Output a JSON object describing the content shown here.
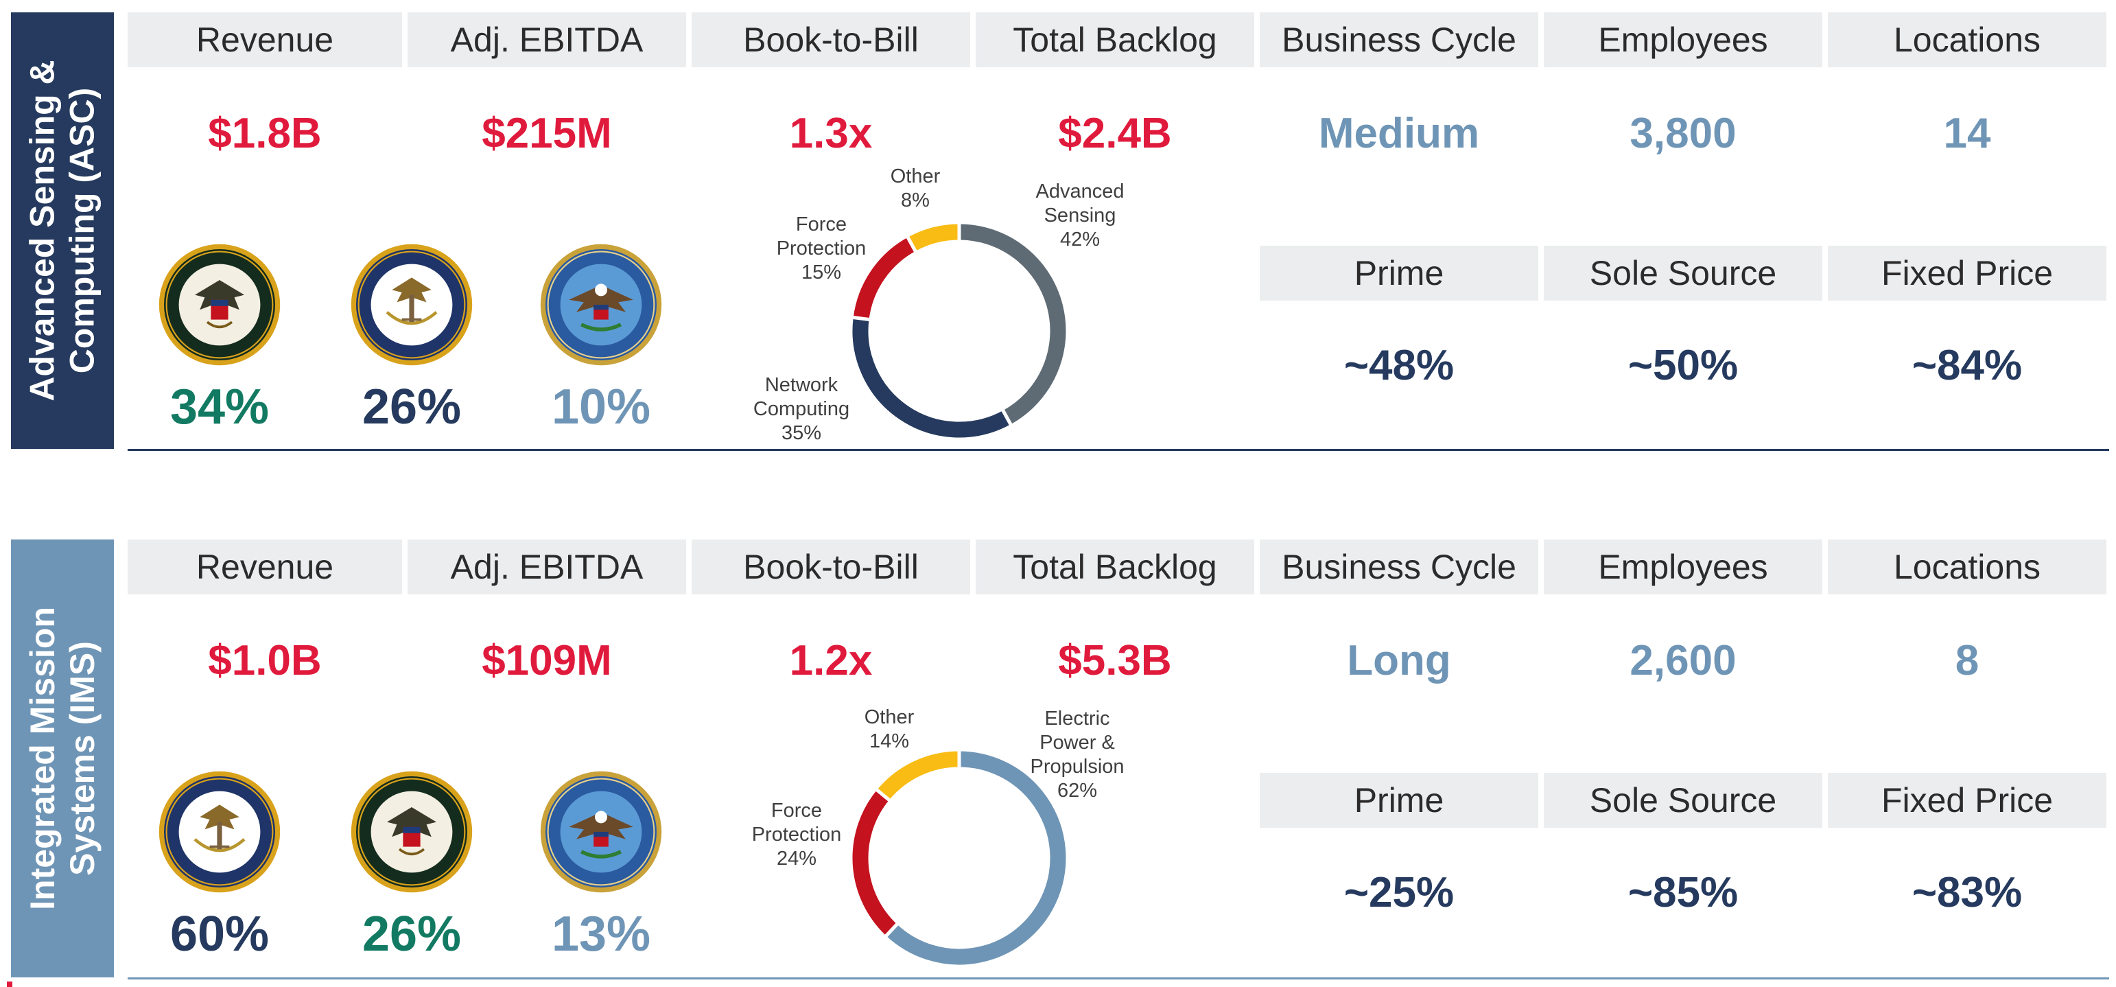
{
  "colors": {
    "red": "#e01a3c",
    "navy": "#253a5e",
    "steel": "#6f95b6",
    "teal": "#127a62",
    "header_bg": "#ecedef"
  },
  "headers": {
    "revenue": "Revenue",
    "ebitda": "Adj. EBITDA",
    "book_to_bill": "Book-to-Bill",
    "backlog": "Total Backlog",
    "business_cycle": "Business Cycle",
    "employees": "Employees",
    "locations": "Locations",
    "prime": "Prime",
    "sole_source": "Sole Source",
    "fixed_price": "Fixed Price"
  },
  "asc": {
    "sidebar": [
      "Advanced Sensing &",
      "Computing (ASC)"
    ],
    "revenue": "$1.8B",
    "ebitda": "$215M",
    "book_to_bill": "1.3x",
    "backlog": "$2.4B",
    "business_cycle": "Medium",
    "employees": "3,800",
    "locations": "14",
    "prime": "~48%",
    "sole_source": "~50%",
    "fixed_price": "~84%",
    "customers": [
      {
        "icon": "army-seal-icon",
        "pct": "34%"
      },
      {
        "icon": "navy-seal-icon",
        "pct": "26%"
      },
      {
        "icon": "dod-seal-icon",
        "pct": "10%"
      }
    ],
    "donut": [
      {
        "label": [
          "Advanced",
          "Sensing",
          "42%"
        ],
        "value": 42,
        "color": "#5e6b74"
      },
      {
        "label": [
          "Network",
          "Computing",
          "35%"
        ],
        "value": 35,
        "color": "#253a5e"
      },
      {
        "label": [
          "Force",
          "Protection",
          "15%"
        ],
        "value": 15,
        "color": "#c4121f"
      },
      {
        "label": [
          "Other",
          "8%"
        ],
        "value": 8,
        "color": "#f9bc15"
      }
    ]
  },
  "ims": {
    "sidebar": [
      "Integrated Mission",
      "Systems (IMS)"
    ],
    "revenue": "$1.0B",
    "ebitda": "$109M",
    "book_to_bill": "1.2x",
    "backlog": "$5.3B",
    "business_cycle": "Long",
    "employees": "2,600",
    "locations": "8",
    "prime": "~25%",
    "sole_source": "~85%",
    "fixed_price": "~83%",
    "customers": [
      {
        "icon": "navy-seal-icon",
        "pct": "60%"
      },
      {
        "icon": "army-seal-icon",
        "pct": "26%"
      },
      {
        "icon": "dod-seal-icon",
        "pct": "13%"
      }
    ],
    "donut": [
      {
        "label": [
          "Electric",
          "Power &",
          "Propulsion",
          "62%"
        ],
        "value": 62,
        "color": "#6f95b6"
      },
      {
        "label": [
          "Force",
          "Protection",
          "24%"
        ],
        "value": 24,
        "color": "#c4121f"
      },
      {
        "label": [
          "Other",
          "14%"
        ],
        "value": 14,
        "color": "#f9bc15"
      }
    ]
  }
}
